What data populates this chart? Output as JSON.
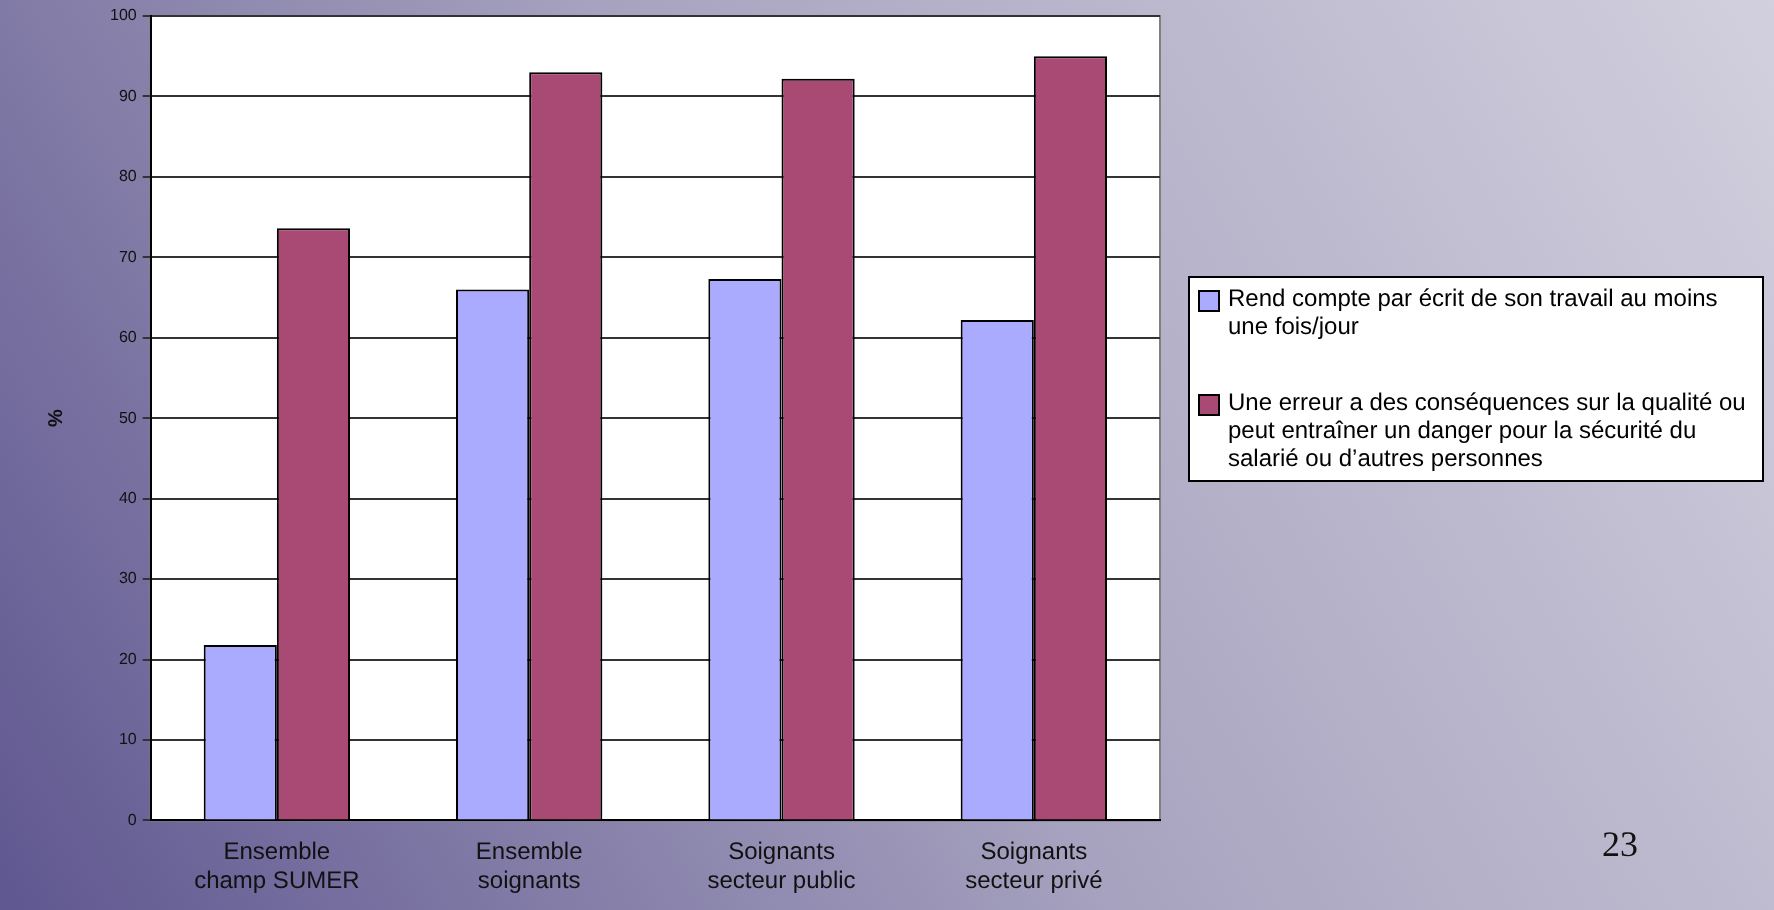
{
  "chart_data": {
    "type": "bar",
    "ylabel": "%",
    "categories": [
      "Ensemble champ SUMER",
      "Ensemble soignants",
      "Soignants secteur public",
      "Soignants secteur privé"
    ],
    "series": [
      {
        "name": "Rend compte par écrit de son travail au moins une fois/jour",
        "color": "#aaaaff",
        "values": [
          21.8,
          66,
          67.3,
          62.2
        ]
      },
      {
        "name": "Une erreur a des conséquences sur la qualité ou peut entraîner un danger pour la sécurité du salarié ou d’autres personnes",
        "color": "#a94a75",
        "values": [
          73.6,
          93,
          92.2,
          95
        ]
      }
    ],
    "ylim": [
      0,
      100
    ],
    "yticks": [
      0,
      10,
      20,
      30,
      40,
      50,
      60,
      70,
      80,
      90,
      100
    ],
    "grid": "y",
    "legend": "right",
    "annotations": [
      "23"
    ]
  }
}
